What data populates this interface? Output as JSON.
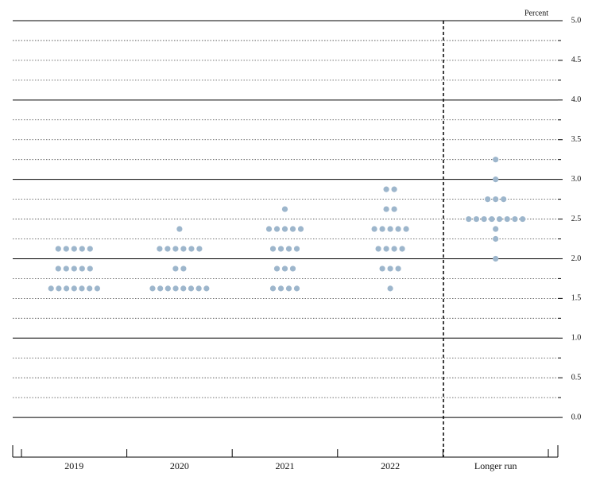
{
  "chart_data": {
    "type": "dot",
    "y_label": "Percent",
    "categories": [
      "2019",
      "2020",
      "2021",
      "2022",
      "Longer run"
    ],
    "dots": [
      [
        2.125,
        2.125,
        2.125,
        2.125,
        2.125,
        1.875,
        1.875,
        1.875,
        1.875,
        1.875,
        1.625,
        1.625,
        1.625,
        1.625,
        1.625,
        1.625,
        1.625
      ],
      [
        2.375,
        2.125,
        2.125,
        2.125,
        2.125,
        2.125,
        2.125,
        1.875,
        1.875,
        1.625,
        1.625,
        1.625,
        1.625,
        1.625,
        1.625,
        1.625,
        1.625
      ],
      [
        2.625,
        2.375,
        2.375,
        2.375,
        2.375,
        2.375,
        2.125,
        2.125,
        2.125,
        2.125,
        1.875,
        1.875,
        1.875,
        1.625,
        1.625,
        1.625,
        1.625
      ],
      [
        2.875,
        2.875,
        2.625,
        2.625,
        2.375,
        2.375,
        2.375,
        2.375,
        2.375,
        2.125,
        2.125,
        2.125,
        2.125,
        1.875,
        1.875,
        1.875,
        1.625
      ],
      [
        3.25,
        3.0,
        2.75,
        2.75,
        2.75,
        2.5,
        2.5,
        2.5,
        2.5,
        2.5,
        2.5,
        2.5,
        2.5,
        2.375,
        2.25,
        2.0
      ]
    ],
    "color": "#9db6cc",
    "ylim": [
      -0.5,
      5
    ],
    "yticks": [
      {
        "value": 0,
        "label": "0.0"
      },
      0.5,
      {
        "value": 1,
        "label": "1.0"
      },
      1.5,
      {
        "value": 2,
        "label": "2.0"
      },
      2.5,
      {
        "value": 3,
        "label": "3.0"
      },
      3.5,
      {
        "value": 4,
        "label": "4.0"
      },
      4.5,
      {
        "value": 5,
        "label": "5.0"
      }
    ],
    "minor_yticks": [
      0.25,
      0.75,
      1.25,
      1.75,
      2.25,
      2.75,
      3.25,
      3.75,
      4.25,
      4.75
    ],
    "grid": true
  }
}
